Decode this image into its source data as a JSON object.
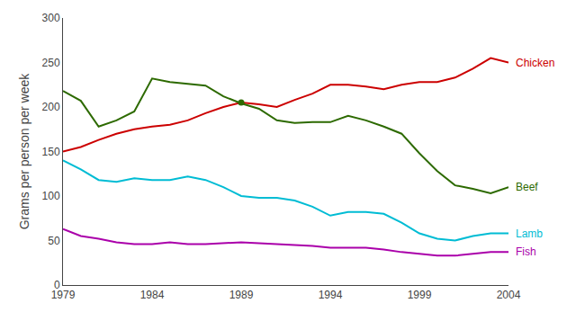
{
  "chart_data": {
    "type": "line",
    "x": [
      1979,
      1980,
      1981,
      1982,
      1983,
      1984,
      1985,
      1986,
      1987,
      1988,
      1989,
      1990,
      1991,
      1992,
      1993,
      1994,
      1995,
      1996,
      1997,
      1998,
      1999,
      2000,
      2001,
      2002,
      2003,
      2004
    ],
    "series": [
      {
        "name": "Chicken",
        "color": "#cc0000",
        "values": [
          150,
          155,
          163,
          170,
          175,
          178,
          180,
          185,
          193,
          200,
          205,
          203,
          200,
          208,
          215,
          225,
          225,
          223,
          220,
          225,
          228,
          228,
          233,
          243,
          255,
          250
        ]
      },
      {
        "name": "Beef",
        "color": "#2d6a00",
        "values": [
          218,
          207,
          178,
          185,
          195,
          232,
          228,
          226,
          224,
          212,
          204,
          198,
          185,
          182,
          183,
          183,
          190,
          185,
          178,
          170,
          148,
          128,
          112,
          108,
          103,
          110
        ]
      },
      {
        "name": "Lamb",
        "color": "#00bcd4",
        "values": [
          140,
          130,
          118,
          116,
          120,
          118,
          118,
          122,
          118,
          110,
          100,
          98,
          98,
          95,
          88,
          78,
          82,
          82,
          80,
          70,
          58,
          52,
          50,
          55,
          58,
          58
        ]
      },
      {
        "name": "Fish",
        "color": "#aa00aa",
        "values": [
          63,
          55,
          52,
          48,
          46,
          46,
          48,
          46,
          46,
          47,
          48,
          47,
          46,
          45,
          44,
          42,
          42,
          42,
          40,
          37,
          35,
          33,
          33,
          35,
          37,
          37
        ]
      }
    ],
    "ylabel": "Grams per person per week",
    "xlim": [
      1979,
      2004
    ],
    "xticks": [
      1979,
      1984,
      1989,
      1994,
      1999,
      2004
    ],
    "ylim": [
      0,
      300
    ],
    "yticks": [
      0,
      50,
      100,
      150,
      200,
      250,
      300
    ],
    "grid": false,
    "highlight": {
      "x": 1989,
      "y": 205,
      "color": "#2d6a00"
    }
  }
}
